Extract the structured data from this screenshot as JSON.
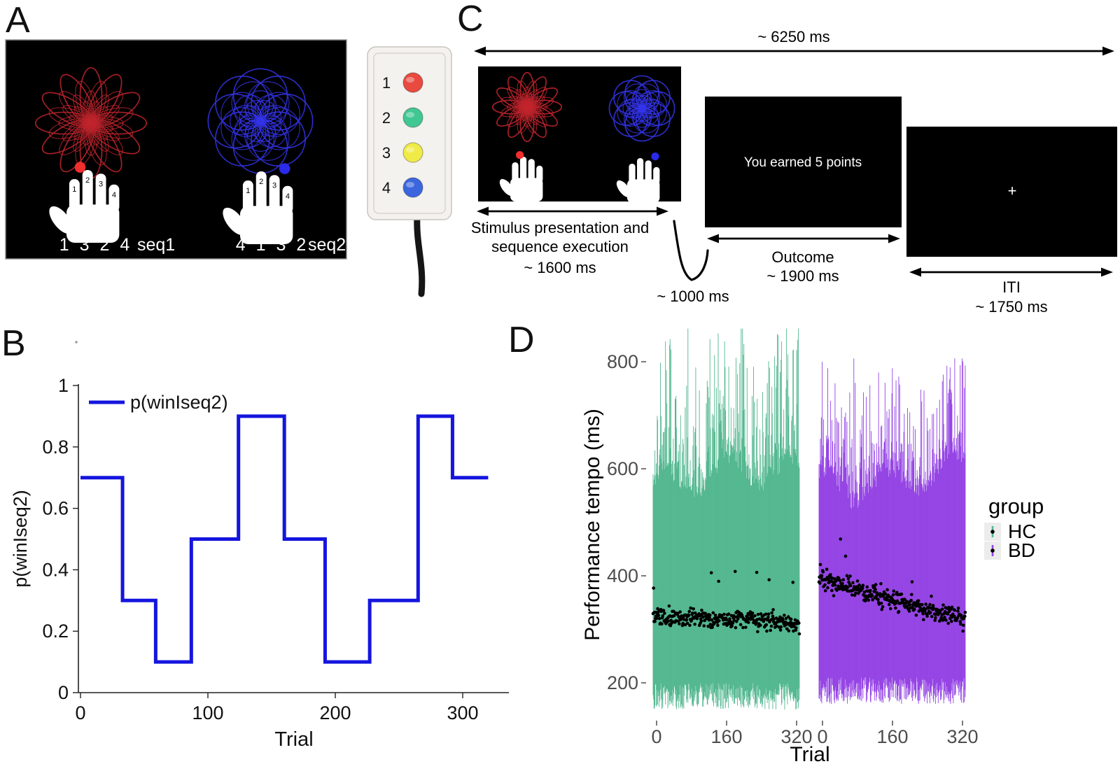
{
  "panelA": {
    "label": "A",
    "screen": {
      "seq1_digits": "1 3 2 4",
      "seq1_name": "seq1",
      "seq2_digits": "4 1 3 2",
      "seq2_name": "seq2",
      "finger_numbers": [
        "1",
        "2",
        "3",
        "4"
      ],
      "flower_red": {
        "petals": 12,
        "color": "#C2242D"
      },
      "flower_blue": {
        "petals": 8,
        "color": "#3434EA"
      },
      "cue_red": "#F02E2E",
      "cue_blue": "#2A2AE8"
    },
    "button_box": {
      "buttons": [
        {
          "label": "1",
          "color": "#E94A3F"
        },
        {
          "label": "2",
          "color": "#41C792"
        },
        {
          "label": "3",
          "color": "#F0EB46"
        },
        {
          "label": "4",
          "color": "#3B66DD"
        }
      ]
    }
  },
  "panelB": {
    "label": "B"
  },
  "panelC": {
    "label": "C",
    "total_duration": "~ 6250 ms",
    "stim_line1": "Stimulus presentation and",
    "stim_line2": "sequence execution",
    "stim_duration": "~ 1600 ms",
    "gap_duration": "~ 1000 ms",
    "outcome_screen_text": "You earned 5 points",
    "outcome_label": "Outcome",
    "outcome_duration": "~ 1900 ms",
    "fixation": "+",
    "iti_label": "ITI",
    "iti_duration": "~ 1750 ms"
  },
  "panelD": {
    "label": "D"
  },
  "chart_data": [
    {
      "id": "B",
      "type": "line",
      "subtype": "step",
      "title": "",
      "xlabel": "Trial",
      "ylabel": "p(winIseq2)",
      "legend": [
        {
          "label": "p(winIseq2)",
          "color": "#1515DE"
        }
      ],
      "legend_position": "top-left-inside",
      "grid": false,
      "xlim": [
        0,
        325
      ],
      "ylim": [
        0,
        1
      ],
      "xticks": [
        "0",
        "100",
        "200",
        "300"
      ],
      "yticks": [
        "0",
        "0.2",
        "0.4",
        "0.6",
        "0.8",
        "1"
      ],
      "line_color": "#1515DE",
      "steps": [
        [
          0,
          0.7
        ],
        [
          33,
          0.3
        ],
        [
          59,
          0.1
        ],
        [
          87,
          0.5
        ],
        [
          124,
          0.9
        ],
        [
          160,
          0.5
        ],
        [
          192,
          0.1
        ],
        [
          227,
          0.3
        ],
        [
          265,
          0.9
        ],
        [
          292,
          0.7
        ],
        [
          320,
          0.7
        ]
      ]
    },
    {
      "id": "D",
      "type": "scatter",
      "subtype": "per-trial vertical range lines with mean dots, faceted by group",
      "xlabel": "Trial",
      "ylabel": "Performance tempo (ms)",
      "legend_title": "group",
      "legend_entries": [
        "HC",
        "BD"
      ],
      "grid": false,
      "xticks": [
        "0",
        "160",
        "320"
      ],
      "yticks": [
        "200",
        "400",
        "600",
        "800"
      ],
      "ylim": [
        140,
        870
      ],
      "dot_color": "#000000",
      "facets": [
        {
          "group": "HC",
          "color": "#52B78F",
          "n_trials": 320,
          "trial_range_low_ms": [
            150,
            200
          ],
          "trial_range_high_ms": [
            505,
            862
          ],
          "mean_trend_ms": {
            "start": 325,
            "end": 312
          },
          "mean_jitter_sd_ms": 12,
          "seed": 101
        },
        {
          "group": "BD",
          "color": "#9443E4",
          "n_trials": 320,
          "trial_range_low_ms": [
            160,
            210
          ],
          "trial_range_high_ms": [
            505,
            806
          ],
          "mean_trend_ms": {
            "start": 394,
            "end": 321
          },
          "mean_jitter_sd_ms": 13,
          "seed": 202
        }
      ]
    }
  ]
}
